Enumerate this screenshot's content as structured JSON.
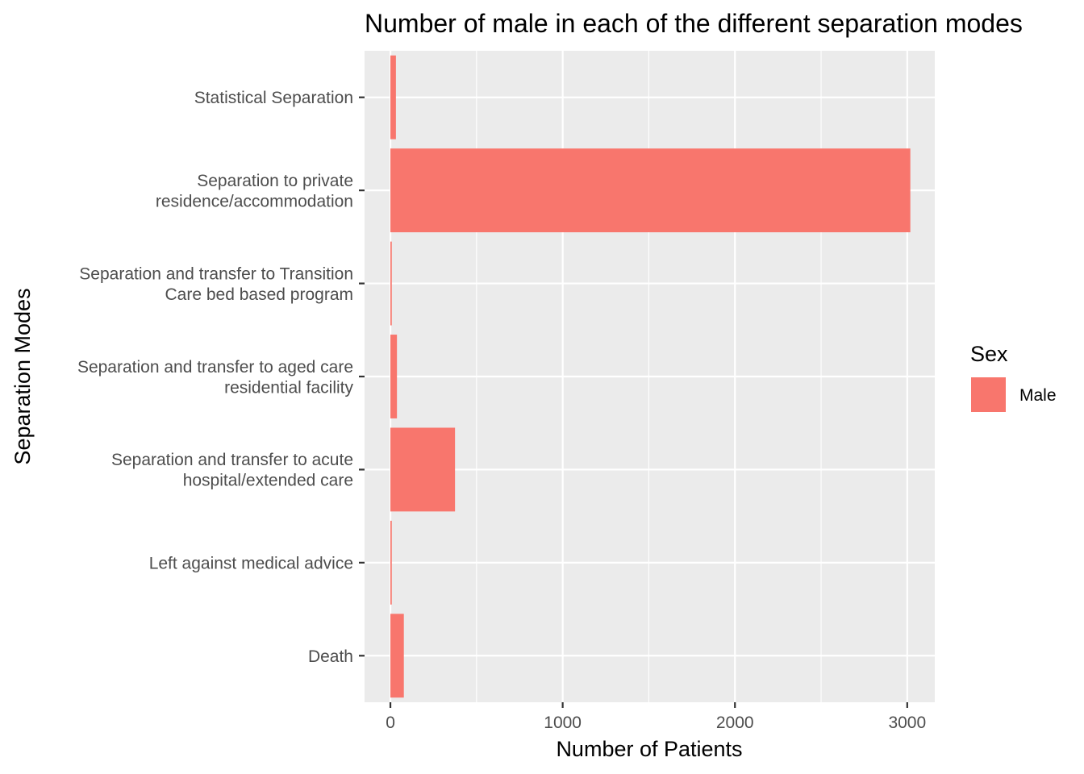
{
  "chart_data": {
    "type": "bar",
    "orientation": "horizontal",
    "title": "Number of male in each of the different separation modes",
    "xlabel": "Number of Patients",
    "ylabel": "Separation Modes",
    "categories": [
      [
        "Statistical Separation"
      ],
      [
        "Separation to private",
        "residence/accommodation"
      ],
      [
        "Separation and transfer to Transition",
        "Care bed based program"
      ],
      [
        "Separation and transfer to aged care",
        "residential facility"
      ],
      [
        "Separation and transfer to acute",
        "hospital/extended care"
      ],
      [
        "Left against medical advice"
      ],
      [
        "Death"
      ]
    ],
    "series": [
      {
        "name": "Male",
        "values": [
          32,
          3018,
          8,
          38,
          375,
          8,
          78
        ]
      }
    ],
    "xlim": [
      -150,
      3160
    ],
    "xticks": [
      0,
      1000,
      2000,
      3000
    ],
    "xticks_minor": [
      500,
      1500,
      2500
    ],
    "grid": true,
    "colors": {
      "Male": "#F8766D",
      "panel": "#EBEBEB",
      "grid": "#FFFFFF"
    },
    "legend": {
      "title": "Sex",
      "position": "right",
      "entries": [
        "Male"
      ]
    }
  }
}
